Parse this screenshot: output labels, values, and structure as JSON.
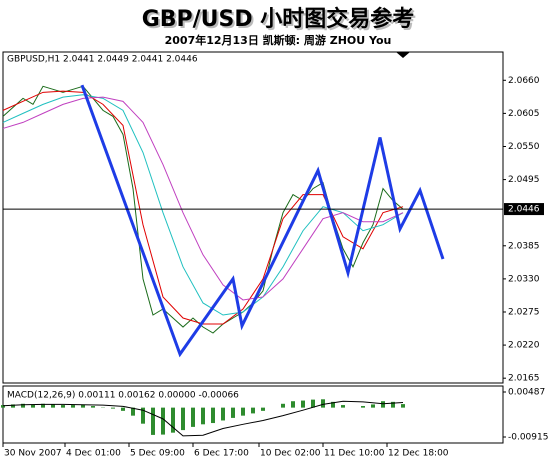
{
  "title": "GBP/USD  小时图交易参考",
  "subtitle": "2007年12月13日  凯斯顿: 周游 ZHOU You",
  "chart_data": [
    {
      "type": "line",
      "label": "GBPUSD,H1  2.0441 2.0449 2.0441 2.0446",
      "xlim": [
        0,
        250
      ],
      "ylim": [
        2.0157,
        2.0707
      ],
      "xticks": [
        {
          "value": 0,
          "label": "30 Nov 2007"
        },
        {
          "value": 31,
          "label": "4 Dec 01:00"
        },
        {
          "value": 63,
          "label": "5 Dec 09:00"
        },
        {
          "value": 95,
          "label": "6 Dec 17:00"
        },
        {
          "value": 128,
          "label": "10 Dec 02:00"
        },
        {
          "value": 160,
          "label": "11 Dec 10:00"
        },
        {
          "value": 192,
          "label": "12 Dec 18:00"
        }
      ],
      "yticks": [
        {
          "value": 2.066,
          "label": "2.0660"
        },
        2.0605,
        {
          "value": 2.055,
          "label": "2.0550"
        },
        2.0495,
        2.0385,
        {
          "value": 2.033,
          "label": "2.0330"
        },
        2.0275,
        {
          "value": 2.022,
          "label": "2.0220"
        },
        2.0165
      ],
      "current_price": 2.0446,
      "series": [
        {
          "color": "#1a6b1a",
          "x": [
            0,
            5,
            10,
            15,
            20,
            25,
            30,
            35,
            40,
            45,
            50,
            55,
            60,
            65,
            70,
            75,
            80,
            85,
            90,
            95,
            100,
            105,
            110,
            115,
            120,
            125,
            130,
            135,
            140,
            145,
            150,
            155,
            160,
            165,
            170,
            175,
            180,
            185,
            190,
            195,
            200
          ],
          "values": [
            2.06,
            2.0615,
            2.063,
            2.062,
            2.065,
            2.0645,
            2.064,
            2.0645,
            2.065,
            2.063,
            2.061,
            2.06,
            2.057,
            2.048,
            2.033,
            2.027,
            2.028,
            2.0265,
            2.025,
            2.0265,
            2.025,
            2.024,
            2.0255,
            2.0265,
            2.0275,
            2.029,
            2.031,
            2.038,
            2.044,
            2.047,
            2.046,
            2.048,
            2.049,
            2.043,
            2.038,
            2.035,
            2.039,
            2.042,
            2.048,
            2.046,
            2.0446
          ]
        },
        {
          "color": "#e00000",
          "x": [
            0,
            10,
            20,
            30,
            40,
            50,
            60,
            70,
            80,
            90,
            100,
            110,
            120,
            130,
            140,
            150,
            160,
            170,
            180,
            190,
            200
          ],
          "values": [
            2.061,
            2.0625,
            2.064,
            2.0642,
            2.064,
            2.062,
            2.0585,
            2.042,
            2.03,
            2.0265,
            2.0255,
            2.0255,
            2.028,
            2.033,
            2.043,
            2.047,
            2.047,
            2.04,
            2.038,
            2.044,
            2.045
          ]
        },
        {
          "color": "#20c0c0",
          "x": [
            0,
            10,
            20,
            30,
            40,
            50,
            60,
            70,
            80,
            90,
            100,
            110,
            120,
            130,
            140,
            150,
            160,
            170,
            180,
            190,
            200
          ],
          "values": [
            2.059,
            2.0605,
            2.062,
            2.0632,
            2.0636,
            2.063,
            2.061,
            2.054,
            2.044,
            2.035,
            2.029,
            2.027,
            2.0275,
            2.03,
            2.035,
            2.041,
            2.045,
            2.044,
            2.041,
            2.042,
            2.044
          ]
        },
        {
          "color": "#c040c0",
          "x": [
            0,
            10,
            20,
            30,
            40,
            50,
            60,
            70,
            80,
            90,
            100,
            110,
            120,
            130,
            140,
            150,
            160,
            170,
            180,
            190,
            200
          ],
          "values": [
            2.058,
            2.059,
            2.0605,
            2.062,
            2.063,
            2.0632,
            2.0625,
            2.059,
            2.052,
            2.044,
            2.037,
            2.032,
            2.0295,
            2.03,
            2.033,
            2.038,
            2.043,
            2.044,
            2.0425,
            2.0425,
            2.044
          ]
        },
        {
          "color": "#1e3ce6",
          "x": [
            39.5,
            88.5,
            115,
            119.5,
            157.5,
            172.5,
            188.5,
            198.5,
            208.5,
            220
          ],
          "values": [
            2.0652,
            2.0205,
            2.033,
            2.0252,
            2.051,
            2.034,
            2.0565,
            2.0413,
            2.0477,
            2.0363
          ]
        }
      ]
    },
    {
      "type": "macd",
      "label": "MACD(12,26,9) 0.00111 0.00162 0.00000 -0.00066",
      "xlim": [
        0,
        250
      ],
      "ylim": [
        -0.01102,
        0.00674
      ],
      "yticks": [
        0.00487,
        -0.00915
      ],
      "series": [
        {
          "color": "#2e8b2e",
          "x": [
            0,
            5,
            10,
            15,
            20,
            25,
            30,
            35,
            40,
            45,
            50,
            55,
            60,
            65,
            70,
            75,
            80,
            85,
            90,
            95,
            100,
            105,
            110,
            115,
            120,
            125,
            130,
            135,
            140,
            145,
            150,
            155,
            160,
            165,
            170,
            175,
            180,
            185,
            190,
            195,
            200
          ],
          "values": [
            0.0008,
            0.001,
            0.0012,
            0.0009,
            0.0012,
            0.001,
            0.0008,
            0.0008,
            0.0009,
            0.0005,
            0.0001,
            -0.0003,
            -0.001,
            -0.0025,
            -0.005,
            -0.0085,
            -0.0084,
            -0.0078,
            -0.007,
            -0.006,
            -0.0052,
            -0.0048,
            -0.004,
            -0.0032,
            -0.0025,
            -0.0018,
            -0.001,
            0,
            0.0012,
            0.002,
            0.0022,
            0.0025,
            0.0026,
            0.0018,
            0.0008,
            0,
            0.0005,
            0.001,
            0.002,
            0.0018,
            0.0011
          ]
        },
        {
          "color": "#000000",
          "x": [
            0,
            10,
            20,
            30,
            40,
            50,
            60,
            70,
            80,
            90,
            100,
            110,
            120,
            130,
            140,
            150,
            160,
            170,
            180,
            190,
            200
          ],
          "values": [
            0.0006,
            0.0009,
            0.001,
            0.001,
            0.0009,
            0.0008,
            0.0004,
            -0.0008,
            -0.0035,
            -0.0088,
            -0.0086,
            -0.0065,
            -0.0052,
            -0.004,
            -0.0025,
            -0.0008,
            0.001,
            0.002,
            0.0018,
            0.0012,
            0.0016
          ]
        }
      ]
    }
  ]
}
